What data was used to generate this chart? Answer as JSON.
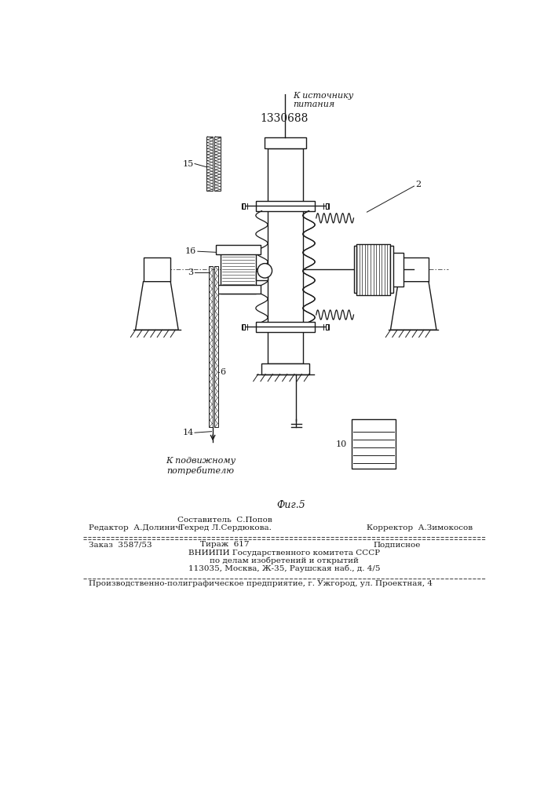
{
  "patent_number": "1330688",
  "fig_label": "Фиг.5",
  "background_color": "#ffffff",
  "line_color": "#1a1a1a",
  "labels": {
    "power_source": "К источнику\nпитания",
    "mobile_consumer": "К подвижному\nпотребителю",
    "part2": "2",
    "part3": "3",
    "part6": "6",
    "part10": "10",
    "part14": "14",
    "part15": "15",
    "part16": "16"
  },
  "footer": {
    "editor": "Редактор  А.Долинич",
    "composer": "Составитель  С.Попов",
    "techred": "Техред Л.Сердюкова.",
    "corrector": "Корректор  А.Зимокосов",
    "order": "Заказ  3587/53",
    "circulation": "Тираж  617",
    "subscription": "Подписное",
    "vniip1": "ВНИИПИ Государственного комитета СССР",
    "vniip2": "по делам изобретений и открытий",
    "vniip3": "113035, Москва, Ж-35, Раушская наб., д. 4/5",
    "production": "Производственно-полиграфическое предприятие, г. Ужгород, ул. Проектная, 4"
  }
}
